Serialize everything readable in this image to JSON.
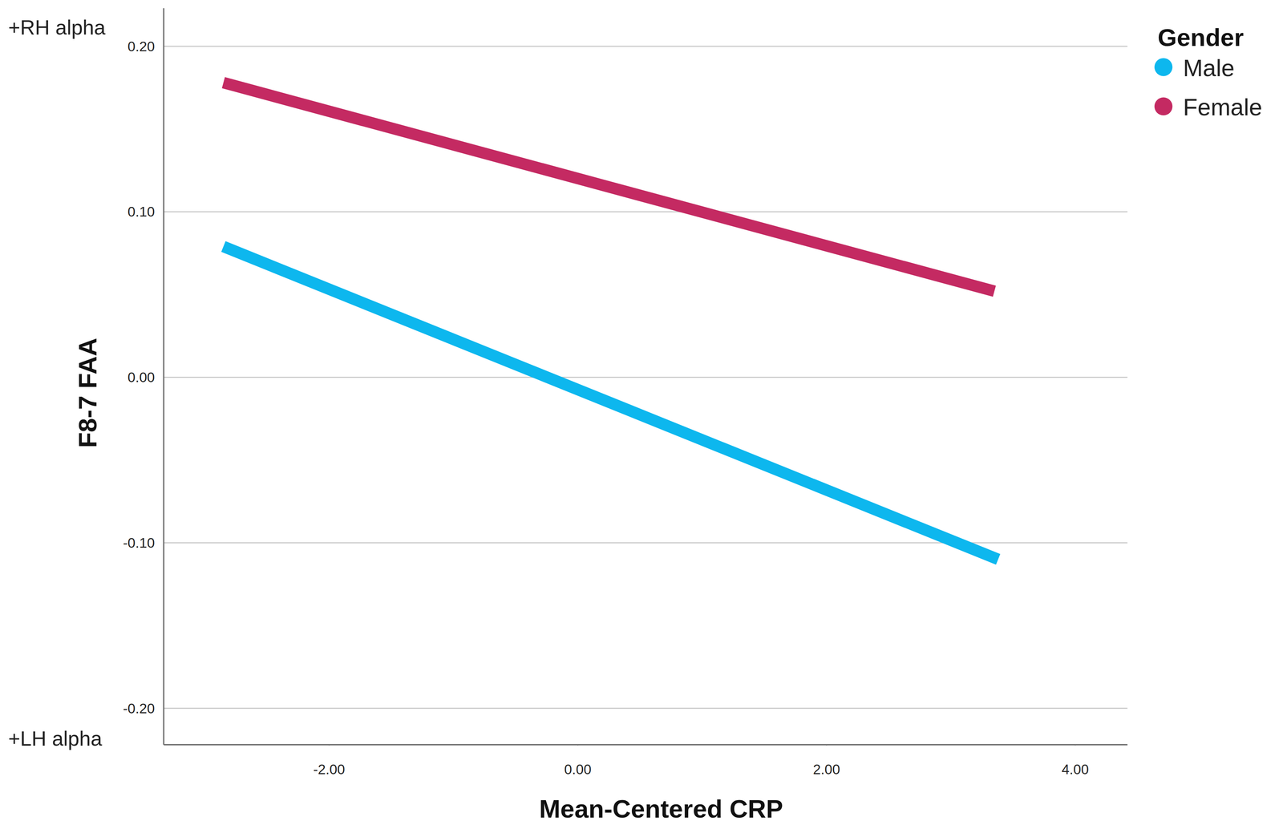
{
  "chart_data": {
    "type": "line",
    "x_label": "Mean-Centered CRP",
    "y_label": "F8-7 FAA",
    "annotations": [
      "+RH alpha",
      "+LH alpha"
    ],
    "legend_title": "Gender",
    "legend": "right",
    "grid": true,
    "xlim": [
      -3.33,
      4.42
    ],
    "ylim": [
      -0.222,
      0.223
    ],
    "xticks": [
      {
        "value": -2,
        "label": "-2.00"
      },
      {
        "value": 0,
        "label": "0.00"
      },
      {
        "value": 2,
        "label": "2.00"
      },
      {
        "value": 4,
        "label": "4.00"
      }
    ],
    "yticks": [
      {
        "value": -0.2,
        "label": "-0.20"
      },
      {
        "value": -0.1,
        "label": "-0.10"
      },
      {
        "value": 0,
        "label": "0.00"
      },
      {
        "value": 0.1,
        "label": "0.10"
      },
      {
        "value": 0.2,
        "label": "0.20"
      }
    ],
    "series": [
      {
        "name": "Male",
        "color": "#0db7ee",
        "x": [
          -2.85,
          3.38
        ],
        "values": [
          0.079,
          -0.11
        ]
      },
      {
        "name": "Female",
        "color": "#c42a62",
        "x": [
          -2.85,
          3.35
        ],
        "values": [
          0.178,
          0.052
        ]
      }
    ]
  }
}
